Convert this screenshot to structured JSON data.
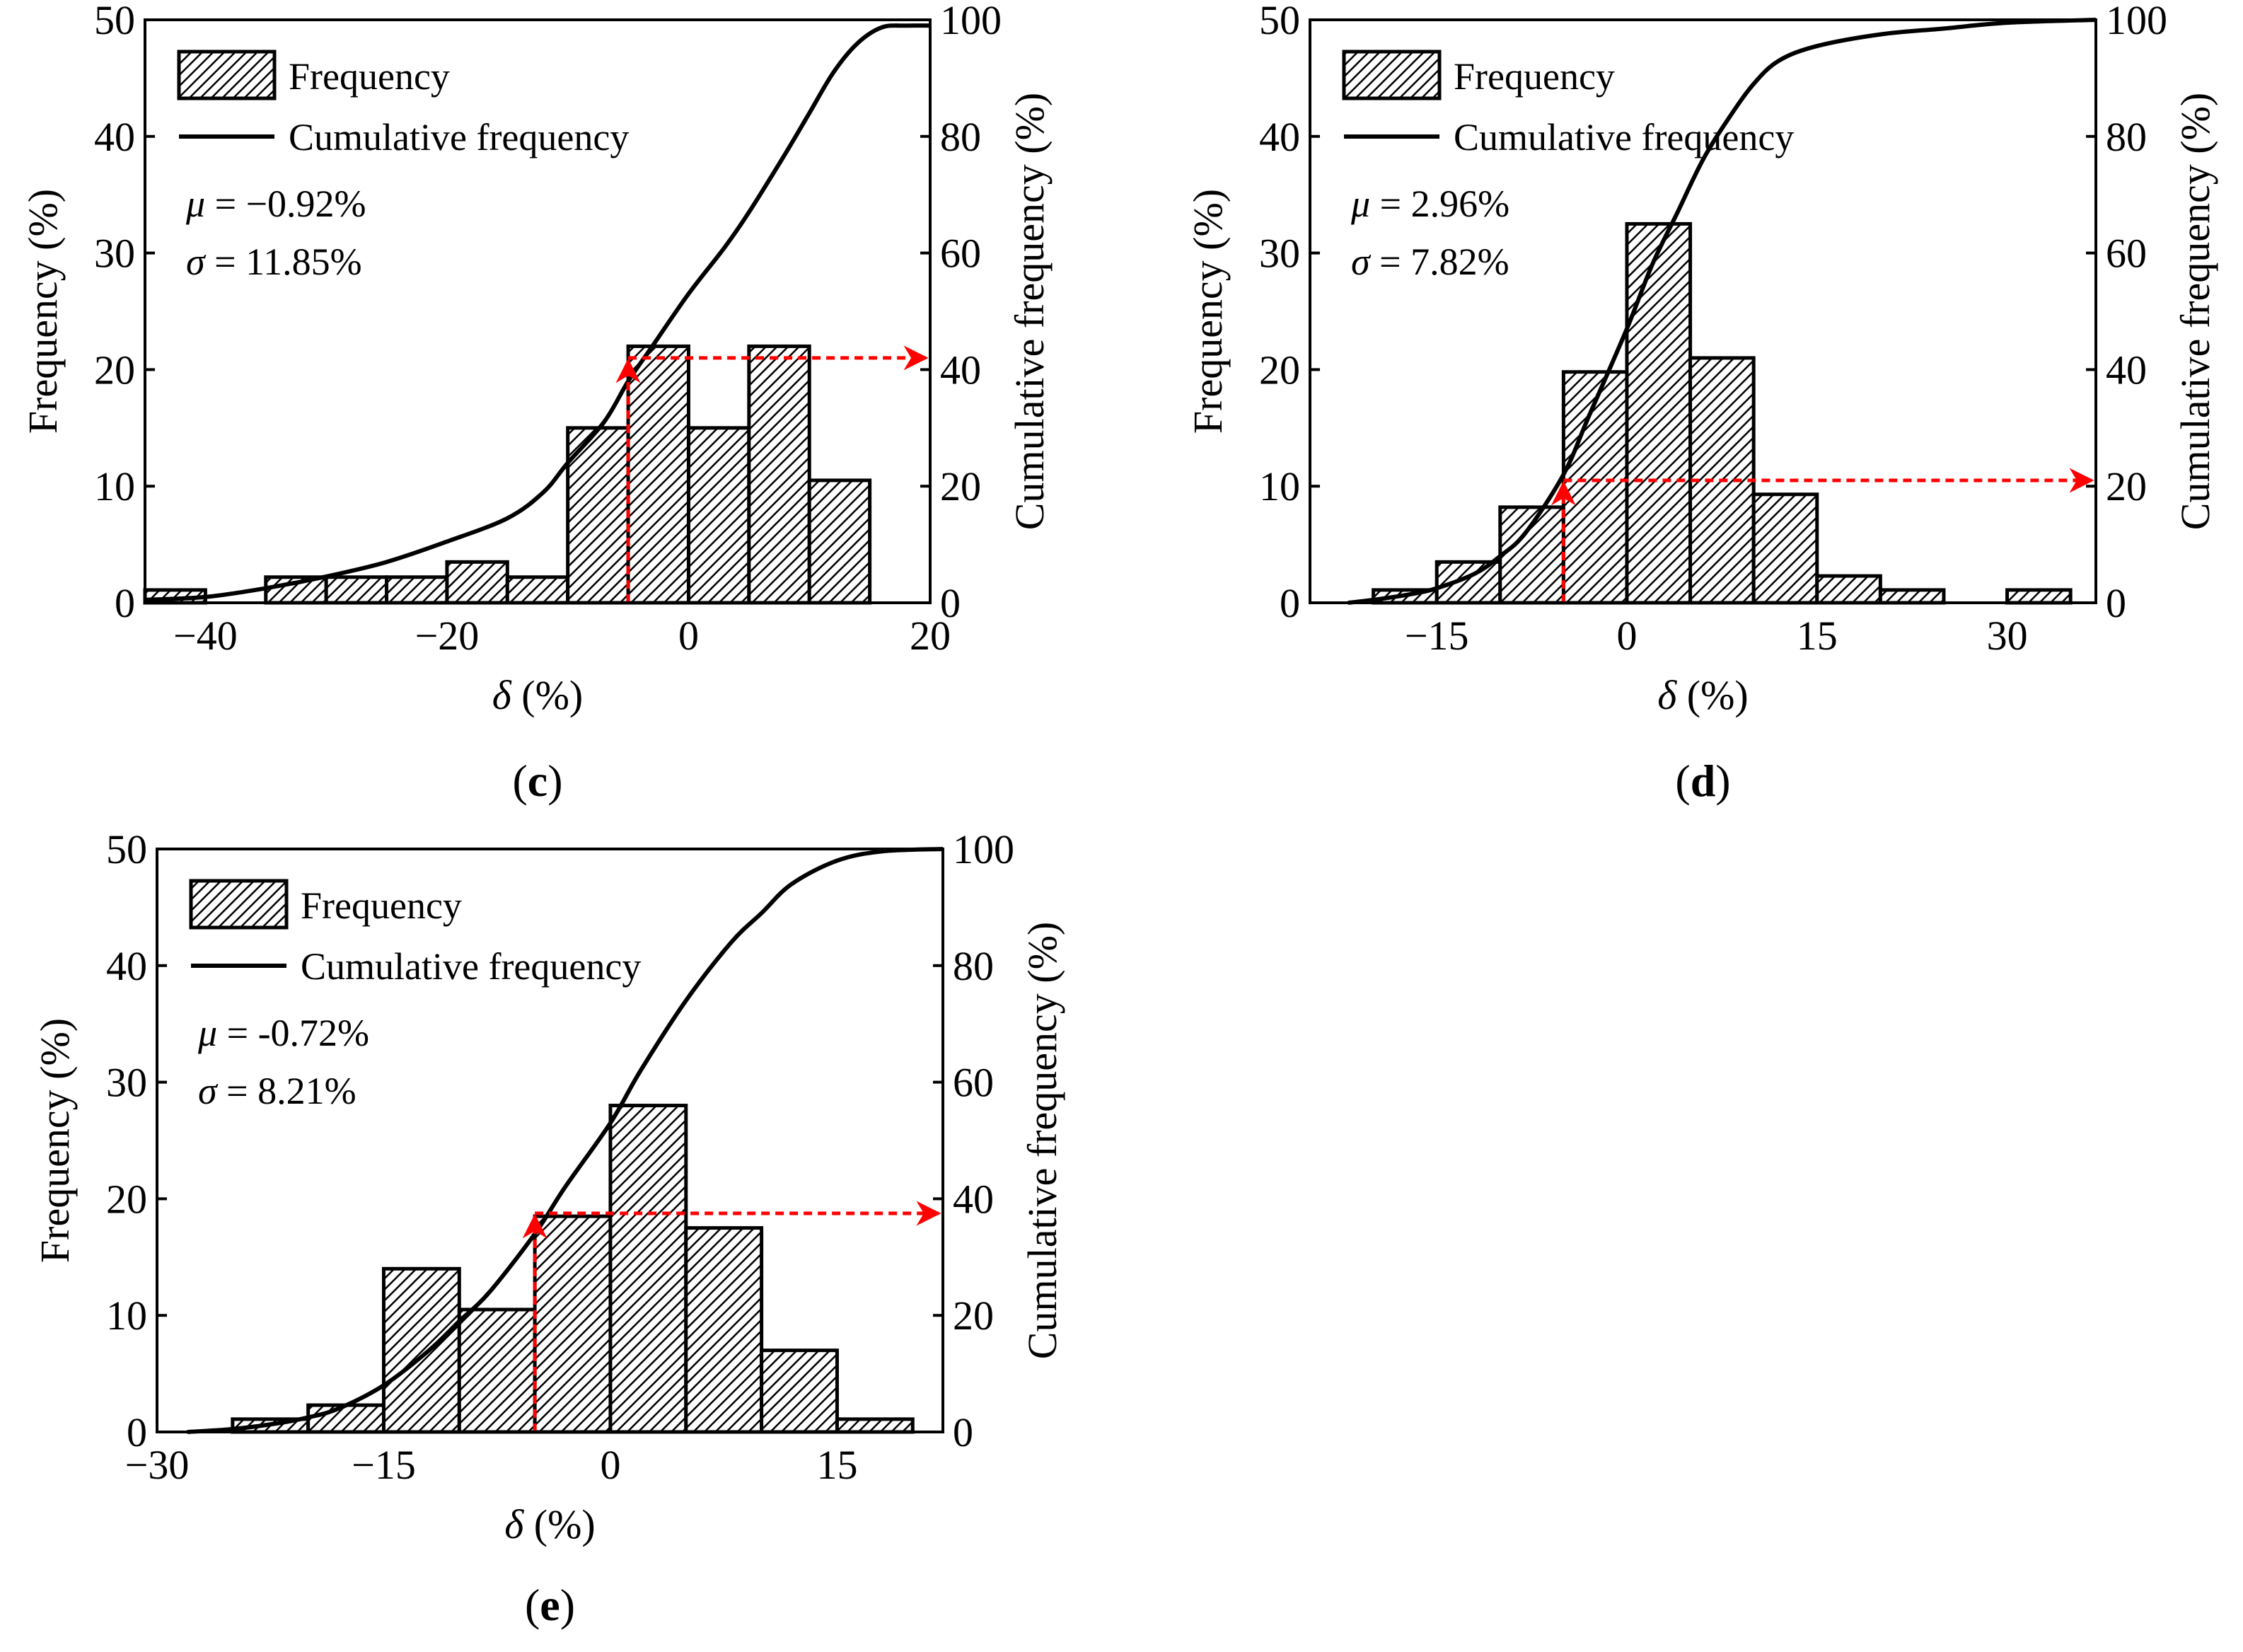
{
  "chart_data": [
    {
      "panel": "c",
      "type": "bar",
      "caption": {
        "open": "(",
        "letter": "c",
        "close": ")"
      },
      "xlabel": {
        "symbol": "δ",
        "unit": " (%)"
      },
      "ylabel": "Frequency (%)",
      "ylabel_right": "Cumulative frequency (%)",
      "xlim": [
        -45,
        20
      ],
      "ylim": [
        0,
        50
      ],
      "ylim_right": [
        0,
        100
      ],
      "xticks": [
        -40,
        -20,
        0,
        20
      ],
      "xtick_labels": [
        "−40",
        "−20",
        "0",
        "20"
      ],
      "yticks": [
        0,
        10,
        20,
        30,
        40,
        50
      ],
      "ytick_labels": [
        "0",
        "10",
        "20",
        "30",
        "40",
        "50"
      ],
      "yticks_right": [
        0,
        20,
        40,
        60,
        80,
        100
      ],
      "ytick_labels_right": [
        "0",
        "20",
        "40",
        "60",
        "80",
        "100"
      ],
      "legend": {
        "bar": "Frequency",
        "line": "Cumulative frequency"
      },
      "stats": {
        "mu_symbol": "μ",
        "mu_text": " = −0.92%",
        "sigma_symbol": "σ",
        "sigma_text": " = 11.85%"
      },
      "bins": [
        {
          "x0": -45,
          "x1": -40,
          "value": 1.1
        },
        {
          "x0": -35,
          "x1": -30,
          "value": 2.2
        },
        {
          "x0": -30,
          "x1": -25,
          "value": 2.2
        },
        {
          "x0": -25,
          "x1": -20,
          "value": 2.2
        },
        {
          "x0": -20,
          "x1": -15,
          "value": 3.5
        },
        {
          "x0": -15,
          "x1": -10,
          "value": 2.2
        },
        {
          "x0": -10,
          "x1": -5,
          "value": 15
        },
        {
          "x0": -5,
          "x1": 0,
          "value": 22
        },
        {
          "x0": 0,
          "x1": 5,
          "value": 15
        },
        {
          "x0": 5,
          "x1": 10,
          "value": 22
        },
        {
          "x0": 10,
          "x1": 15,
          "value": 10.5
        }
      ],
      "cumulative": [
        [
          -45,
          0.5
        ],
        [
          -40,
          1
        ],
        [
          -35,
          2.5
        ],
        [
          -30,
          4.5
        ],
        [
          -25,
          7
        ],
        [
          -20,
          10.5
        ],
        [
          -15,
          14.5
        ],
        [
          -12,
          19
        ],
        [
          -10,
          24
        ],
        [
          -7,
          31
        ],
        [
          -5,
          38
        ],
        [
          -3,
          44
        ],
        [
          0,
          53
        ],
        [
          3,
          61
        ],
        [
          5,
          67
        ],
        [
          8,
          77
        ],
        [
          10,
          84
        ],
        [
          12,
          91
        ],
        [
          14,
          96
        ],
        [
          16,
          98.7
        ],
        [
          18,
          99
        ],
        [
          20,
          99
        ]
      ],
      "marker": {
        "x": -5,
        "y_right": 42
      }
    },
    {
      "panel": "d",
      "type": "bar",
      "caption": {
        "open": "(",
        "letter": "d",
        "close": ")"
      },
      "xlabel": {
        "symbol": "δ",
        "unit": " (%)"
      },
      "ylabel": "Frequency (%)",
      "ylabel_right": "Cumulative frequency (%)",
      "xlim": [
        -25,
        37
      ],
      "ylim": [
        0,
        50
      ],
      "ylim_right": [
        0,
        100
      ],
      "xticks": [
        -15,
        0,
        15,
        30
      ],
      "xtick_labels": [
        "−15",
        "0",
        "15",
        "30"
      ],
      "yticks": [
        0,
        10,
        20,
        30,
        40,
        50
      ],
      "ytick_labels": [
        "0",
        "10",
        "20",
        "30",
        "40",
        "50"
      ],
      "yticks_right": [
        0,
        20,
        40,
        60,
        80,
        100
      ],
      "ytick_labels_right": [
        "0",
        "20",
        "40",
        "60",
        "80",
        "100"
      ],
      "legend": {
        "bar": "Frequency",
        "line": "Cumulative frequency"
      },
      "stats": {
        "mu_symbol": "μ",
        "mu_text": " = 2.96%",
        "sigma_symbol": "σ",
        "sigma_text": " = 7.82%"
      },
      "bins": [
        {
          "x0": -20,
          "x1": -15,
          "value": 1.1
        },
        {
          "x0": -15,
          "x1": -10,
          "value": 3.5
        },
        {
          "x0": -10,
          "x1": -5,
          "value": 8.2
        },
        {
          "x0": -5,
          "x1": 0,
          "value": 19.8
        },
        {
          "x0": 0,
          "x1": 5,
          "value": 32.5
        },
        {
          "x0": 5,
          "x1": 10,
          "value": 21
        },
        {
          "x0": 10,
          "x1": 15,
          "value": 9.3
        },
        {
          "x0": 15,
          "x1": 20,
          "value": 2.3
        },
        {
          "x0": 20,
          "x1": 25,
          "value": 1.1
        },
        {
          "x0": 30,
          "x1": 35,
          "value": 1.1
        }
      ],
      "cumulative": [
        [
          -22,
          0
        ],
        [
          -20,
          0.5
        ],
        [
          -17,
          1.5
        ],
        [
          -15,
          2.5
        ],
        [
          -12,
          5
        ],
        [
          -10,
          8
        ],
        [
          -8,
          12
        ],
        [
          -5,
          22
        ],
        [
          -3,
          32
        ],
        [
          0,
          47
        ],
        [
          2,
          58
        ],
        [
          4,
          67
        ],
        [
          6,
          76
        ],
        [
          8,
          83
        ],
        [
          10,
          89
        ],
        [
          12,
          93
        ],
        [
          15,
          95.5
        ],
        [
          20,
          97.5
        ],
        [
          25,
          98.5
        ],
        [
          30,
          99.5
        ],
        [
          37,
          100
        ]
      ],
      "marker": {
        "x": -5,
        "y_right": 21
      }
    },
    {
      "panel": "e",
      "type": "bar",
      "caption": {
        "open": "(",
        "letter": "e",
        "close": ")"
      },
      "xlabel": {
        "symbol": "δ",
        "unit": " (%)"
      },
      "ylabel": "Frequency (%)",
      "ylabel_right": "Cumulative frequency (%)",
      "xlim": [
        -30,
        22
      ],
      "ylim": [
        0,
        50
      ],
      "ylim_right": [
        0,
        100
      ],
      "xticks": [
        -30,
        -15,
        0,
        15
      ],
      "xtick_labels": [
        "−30",
        "−15",
        "0",
        "15"
      ],
      "yticks": [
        0,
        10,
        20,
        30,
        40,
        50
      ],
      "ytick_labels": [
        "0",
        "10",
        "20",
        "30",
        "40",
        "50"
      ],
      "yticks_right": [
        0,
        20,
        40,
        60,
        80,
        100
      ],
      "ytick_labels_right": [
        "0",
        "20",
        "40",
        "60",
        "80",
        "100"
      ],
      "legend": {
        "bar": "Frequency",
        "line": "Cumulative frequency"
      },
      "stats": {
        "mu_symbol": "μ",
        "mu_text": " = -0.72%",
        "sigma_symbol": "σ",
        "sigma_text": " = 8.21%"
      },
      "bins": [
        {
          "x0": -25,
          "x1": -20,
          "value": 1.1
        },
        {
          "x0": -20,
          "x1": -15,
          "value": 2.3
        },
        {
          "x0": -15,
          "x1": -10,
          "value": 14
        },
        {
          "x0": -10,
          "x1": -5,
          "value": 10.5
        },
        {
          "x0": -5,
          "x1": 0,
          "value": 18.5
        },
        {
          "x0": 0,
          "x1": 5,
          "value": 28
        },
        {
          "x0": 5,
          "x1": 10,
          "value": 17.5
        },
        {
          "x0": 10,
          "x1": 15,
          "value": 7
        },
        {
          "x0": 15,
          "x1": 20,
          "value": 1.1
        }
      ],
      "cumulative": [
        [
          -28,
          0
        ],
        [
          -25,
          0.5
        ],
        [
          -22,
          1.5
        ],
        [
          -20,
          2.5
        ],
        [
          -18,
          4
        ],
        [
          -15,
          8
        ],
        [
          -12,
          14
        ],
        [
          -10,
          19
        ],
        [
          -8,
          24
        ],
        [
          -5,
          34
        ],
        [
          -3,
          42
        ],
        [
          0,
          53
        ],
        [
          2,
          62
        ],
        [
          5,
          74
        ],
        [
          8,
          84
        ],
        [
          10,
          89
        ],
        [
          12,
          94
        ],
        [
          15,
          98
        ],
        [
          18,
          99.6
        ],
        [
          22,
          100
        ]
      ],
      "marker": {
        "x": -5,
        "y_right": 37.5
      }
    }
  ]
}
